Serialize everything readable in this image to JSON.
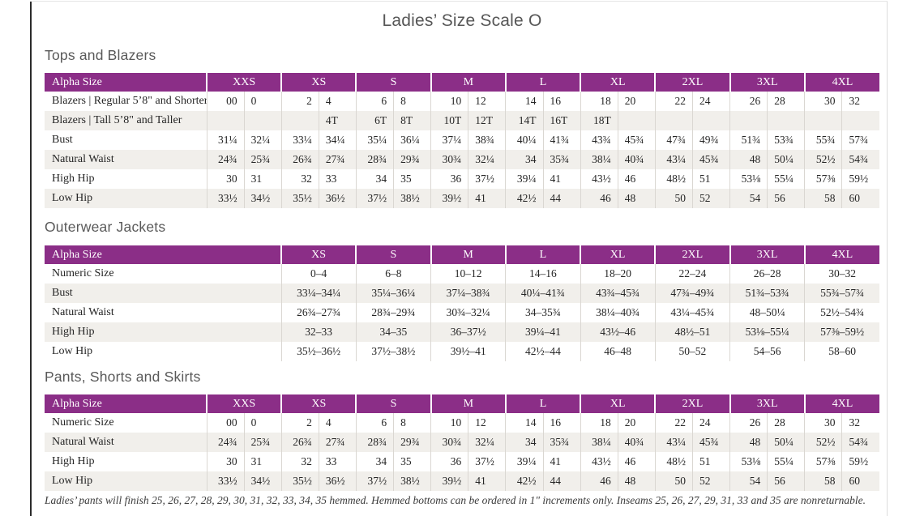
{
  "title": "Ladies’ Size Scale O",
  "colors": {
    "header_purple": "#8B2E87",
    "alt_row": "#F1EFEB",
    "heading_gray": "#595959"
  },
  "tables": {
    "tops": {
      "heading": "Tops and Blazers",
      "label_header": "Alpha Size",
      "groups": [
        "XXS",
        "XS",
        "S",
        "M",
        "L",
        "XL",
        "2XL",
        "3XL",
        "4XL"
      ],
      "rows": [
        {
          "label": "Blazers | Regular 5’8\" and Shorter",
          "values": [
            "00",
            "0",
            "2",
            "4",
            "6",
            "8",
            "10",
            "12",
            "14",
            "16",
            "18",
            "20",
            "22",
            "24",
            "26",
            "28",
            "30",
            "32"
          ]
        },
        {
          "label": "Blazers | Tall 5’8\" and Taller",
          "values": [
            "",
            "",
            "",
            "4T",
            "6T",
            "8T",
            "10T",
            "12T",
            "14T",
            "16T",
            "18T",
            "",
            "",
            "",
            "",
            "",
            "",
            ""
          ]
        },
        {
          "label": "Bust",
          "values": [
            "31¼",
            "32¼",
            "33¼",
            "34¼",
            "35¼",
            "36¼",
            "37¼",
            "38¾",
            "40¼",
            "41¾",
            "43¾",
            "45¾",
            "47¾",
            "49¾",
            "51¾",
            "53¾",
            "55¾",
            "57¾"
          ]
        },
        {
          "label": "Natural Waist",
          "values": [
            "24¾",
            "25¾",
            "26¾",
            "27¾",
            "28¾",
            "29¾",
            "30¾",
            "32¼",
            "34",
            "35¾",
            "38¼",
            "40¾",
            "43¼",
            "45¾",
            "48",
            "50¼",
            "52½",
            "54¾"
          ]
        },
        {
          "label": "High Hip",
          "values": [
            "30",
            "31",
            "32",
            "33",
            "34",
            "35",
            "36",
            "37½",
            "39¼",
            "41",
            "43½",
            "46",
            "48½",
            "51",
            "53⅛",
            "55¼",
            "57⅜",
            "59½"
          ]
        },
        {
          "label": "Low Hip",
          "values": [
            "33½",
            "34½",
            "35½",
            "36½",
            "37½",
            "38½",
            "39½",
            "41",
            "42½",
            "44",
            "46",
            "48",
            "50",
            "52",
            "54",
            "56",
            "58",
            "60"
          ]
        }
      ]
    },
    "outerwear": {
      "heading": "Outerwear Jackets",
      "label_header": "Alpha Size",
      "groups": [
        "XS",
        "S",
        "M",
        "L",
        "XL",
        "2XL",
        "3XL",
        "4XL"
      ],
      "rows": [
        {
          "label": "Numeric Size",
          "values": [
            "0–4",
            "6–8",
            "10–12",
            "14–16",
            "18–20",
            "22–24",
            "26–28",
            "30–32"
          ]
        },
        {
          "label": "Bust",
          "values": [
            "33¼–34¼",
            "35¼–36¼",
            "37¼–38¾",
            "40¼–41¾",
            "43¾–45¾",
            "47¾–49¾",
            "51¾–53¾",
            "55¾–57¾"
          ]
        },
        {
          "label": "Natural Waist",
          "values": [
            "26¾–27¾",
            "28¾–29¾",
            "30¾–32¼",
            "34–35¾",
            "38¼–40¾",
            "43¼–45¾",
            "48–50¼",
            "52½–54¾"
          ]
        },
        {
          "label": "High Hip",
          "values": [
            "32–33",
            "34–35",
            "36–37½",
            "39¼–41",
            "43½–46",
            "48½–51",
            "53⅛–55¼",
            "57⅜–59½"
          ]
        },
        {
          "label": "Low Hip",
          "values": [
            "35½–36½",
            "37½–38½",
            "39½–41",
            "42½–44",
            "46–48",
            "50–52",
            "54–56",
            "58–60"
          ]
        }
      ]
    },
    "pants": {
      "heading": "Pants, Shorts and Skirts",
      "label_header": "Alpha Size",
      "groups": [
        "XXS",
        "XS",
        "S",
        "M",
        "L",
        "XL",
        "2XL",
        "3XL",
        "4XL"
      ],
      "rows": [
        {
          "label": "Numeric Size",
          "values": [
            "00",
            "0",
            "2",
            "4",
            "6",
            "8",
            "10",
            "12",
            "14",
            "16",
            "18",
            "20",
            "22",
            "24",
            "26",
            "28",
            "30",
            "32"
          ]
        },
        {
          "label": "Natural Waist",
          "values": [
            "24¾",
            "25¾",
            "26¾",
            "27¾",
            "28¾",
            "29¾",
            "30¾",
            "32¼",
            "34",
            "35¾",
            "38¼",
            "40¾",
            "43¼",
            "45¾",
            "48",
            "50¼",
            "52½",
            "54¾"
          ]
        },
        {
          "label": "High Hip",
          "values": [
            "30",
            "31",
            "32",
            "33",
            "34",
            "35",
            "36",
            "37½",
            "39¼",
            "41",
            "43½",
            "46",
            "48½",
            "51",
            "53⅛",
            "55¼",
            "57⅜",
            "59½"
          ]
        },
        {
          "label": "Low Hip",
          "values": [
            "33½",
            "34½",
            "35½",
            "36½",
            "37½",
            "38½",
            "39½",
            "41",
            "42½",
            "44",
            "46",
            "48",
            "50",
            "52",
            "54",
            "56",
            "58",
            "60"
          ]
        }
      ]
    }
  },
  "footnote": "Ladies’ pants will finish 25, 26, 27, 28, 29, 30, 31, 32, 33, 34, 35 hemmed. Hemmed bottoms can be ordered in 1\" increments only. Inseams 25, 26, 27, 29, 31, 33 and 35 are nonreturnable."
}
